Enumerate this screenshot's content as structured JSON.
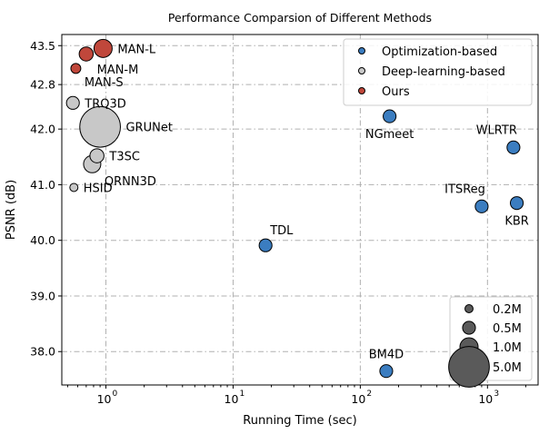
{
  "chart_data": {
    "type": "scatter",
    "title": "Performance Comparsion of Different Methods",
    "xlabel": "Running Time (sec)",
    "ylabel": "PSNR (dB)",
    "x_scale": "log",
    "xlim": [
      0.45,
      2500
    ],
    "ylim": [
      37.4,
      43.7
    ],
    "x_ticks": [
      {
        "value": 1,
        "label": "10",
        "exp": "0"
      },
      {
        "value": 10,
        "label": "10",
        "exp": "1"
      },
      {
        "value": 100,
        "label": "10",
        "exp": "2"
      },
      {
        "value": 1000,
        "label": "10",
        "exp": "3"
      }
    ],
    "y_ticks": [
      {
        "value": 38.0,
        "label": "38.0"
      },
      {
        "value": 39.0,
        "label": "39.0"
      },
      {
        "value": 40.0,
        "label": "40.0"
      },
      {
        "value": 41.0,
        "label": "41.0"
      },
      {
        "value": 42.0,
        "label": "42.0"
      },
      {
        "value": 42.8,
        "label": "42.8"
      },
      {
        "value": 43.5,
        "label": "43.5"
      }
    ],
    "grid": true,
    "categories": [
      {
        "name": "Optimization-based",
        "color": "#3b7dc0"
      },
      {
        "name": "Deep-learning-based",
        "color": "#c8c8c8"
      },
      {
        "name": "Ours",
        "color": "#c0473b"
      }
    ],
    "points": [
      {
        "label": "MAN-L",
        "x": 0.95,
        "y": 43.45,
        "params_m": 1.0,
        "category": 2,
        "label_pos": "right"
      },
      {
        "label": "MAN-M",
        "x": 0.7,
        "y": 43.35,
        "params_m": 0.6,
        "category": 2,
        "label_pos": "below-right"
      },
      {
        "label": "MAN-S",
        "x": 0.58,
        "y": 43.09,
        "params_m": 0.3,
        "category": 2,
        "label_pos": "below-right"
      },
      {
        "label": "TRQ3D",
        "x": 0.55,
        "y": 42.47,
        "params_m": 0.5,
        "category": 1,
        "label_pos": "right"
      },
      {
        "label": "GRUNet",
        "x": 0.9,
        "y": 42.04,
        "params_m": 5.0,
        "category": 1,
        "label_pos": "right"
      },
      {
        "label": "T3SC",
        "x": 0.85,
        "y": 41.52,
        "params_m": 0.6,
        "category": 1,
        "label_pos": "right"
      },
      {
        "label": "QRNN3D",
        "x": 0.78,
        "y": 41.37,
        "params_m": 0.9,
        "category": 1,
        "label_pos": "below-right"
      },
      {
        "label": "HSID",
        "x": 0.56,
        "y": 40.95,
        "params_m": 0.2,
        "category": 1,
        "label_pos": "right"
      },
      {
        "label": "NGmeet",
        "x": 170,
        "y": 42.23,
        "params_m": 0.5,
        "category": 0,
        "label_pos": "below"
      },
      {
        "label": "WLRTR",
        "x": 1600,
        "y": 41.67,
        "params_m": 0.5,
        "category": 0,
        "label_pos": "above-left"
      },
      {
        "label": "ITSReg",
        "x": 900,
        "y": 40.61,
        "params_m": 0.5,
        "category": 0,
        "label_pos": "above-left"
      },
      {
        "label": "KBR",
        "x": 1700,
        "y": 40.67,
        "params_m": 0.5,
        "category": 0,
        "label_pos": "below"
      },
      {
        "label": "TDL",
        "x": 18,
        "y": 39.91,
        "params_m": 0.5,
        "category": 0,
        "label_pos": "above-right"
      },
      {
        "label": "BM4D",
        "x": 160,
        "y": 37.65,
        "params_m": 0.5,
        "category": 0,
        "label_pos": "above"
      }
    ],
    "size_legend": {
      "color": "#5a5a5a",
      "entries": [
        {
          "label": "0.2M",
          "params_m": 0.2
        },
        {
          "label": "0.5M",
          "params_m": 0.5
        },
        {
          "label": "1.0M",
          "params_m": 1.0
        },
        {
          "label": "5.0M",
          "params_m": 5.0
        }
      ]
    },
    "legend_position": "top-right",
    "size_legend_position": "bottom-right"
  }
}
